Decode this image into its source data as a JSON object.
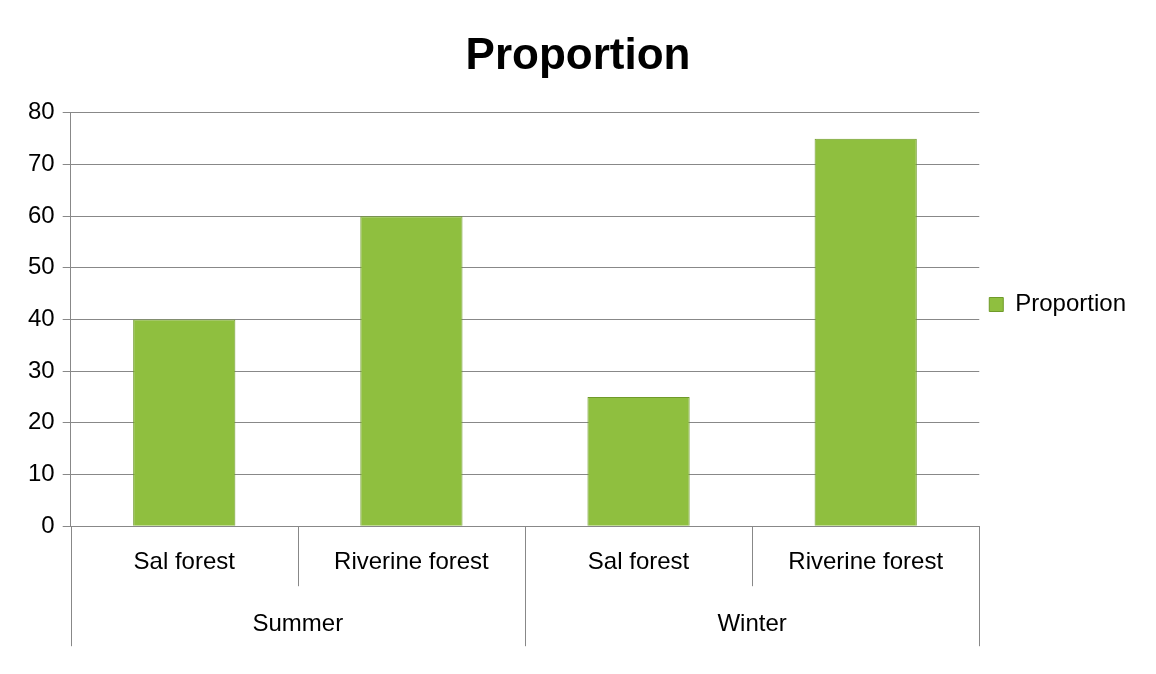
{
  "chart_data": {
    "type": "bar",
    "title": "Proportion",
    "categories": [
      "Sal forest",
      "Riverine forest",
      "Sal forest",
      "Riverine forest"
    ],
    "series": [
      {
        "name": "Proportion",
        "color": "#8fbf3f",
        "values": [
          40,
          60,
          25,
          75
        ]
      }
    ],
    "ylim": [
      0,
      80
    ],
    "yticks": [
      0,
      10,
      20,
      30,
      40,
      50,
      60,
      70,
      80
    ],
    "grid": "y",
    "legend": "right",
    "annotations": [
      "Summer",
      "Winter"
    ]
  }
}
